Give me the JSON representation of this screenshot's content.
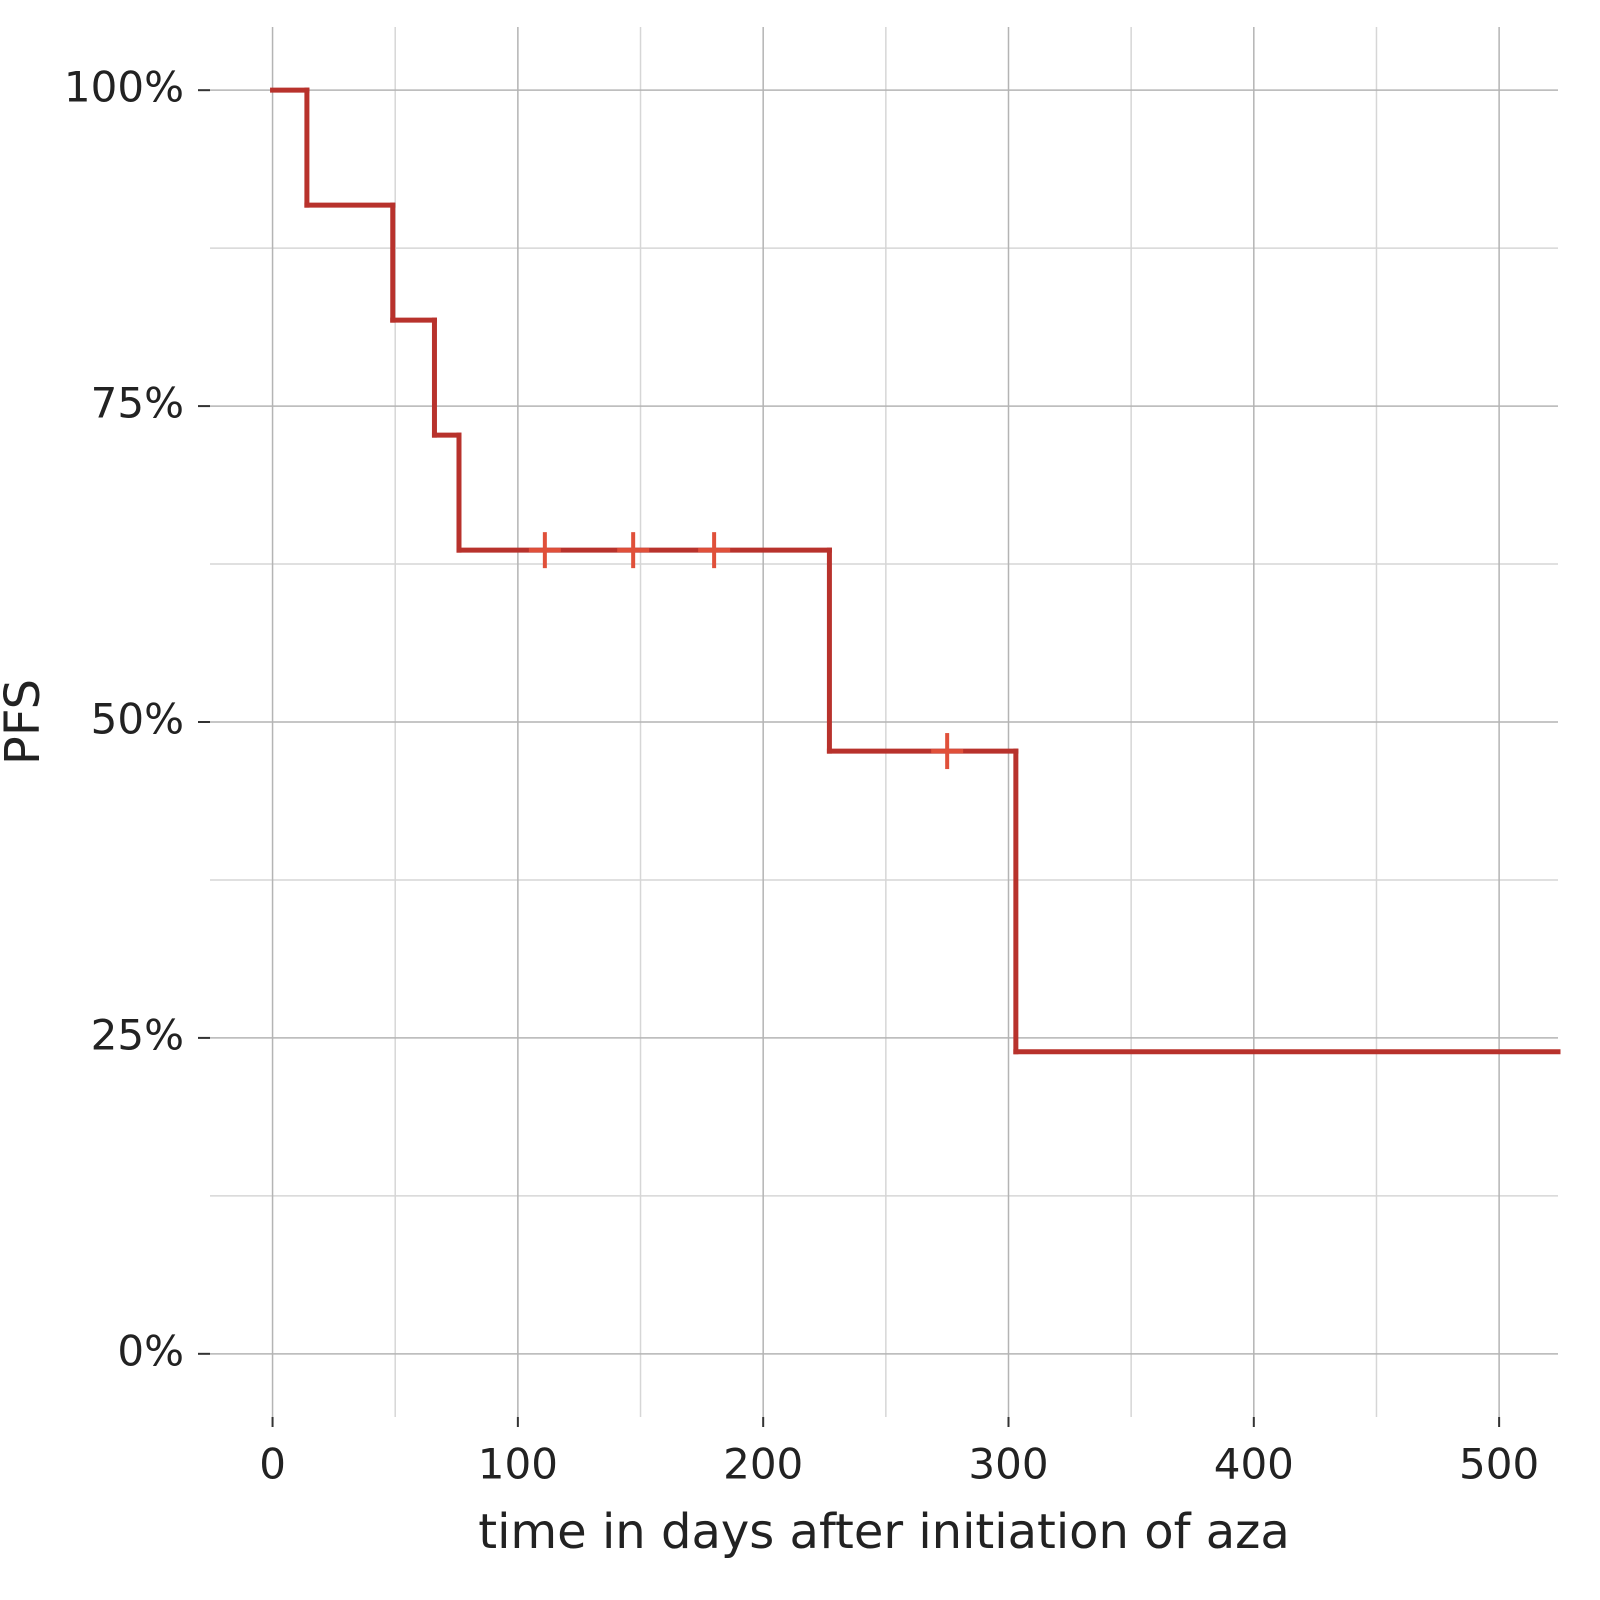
{
  "chart_data": {
    "type": "step",
    "x_label": "time in days after initiation of aza",
    "y_label": "PFS",
    "x": [
      0,
      14,
      49,
      66,
      76,
      227,
      303,
      524
    ],
    "values": [
      100,
      90.9,
      81.8,
      72.7,
      63.6,
      47.7,
      23.9,
      23.9
    ],
    "color": "#b8322c",
    "censored": {
      "x": [
        111,
        147,
        180,
        275
      ],
      "values": [
        63.6,
        63.6,
        63.6,
        47.7
      ],
      "color": "#e0503a"
    },
    "xlim": [
      -25.5,
      524
    ],
    "xticks": [
      0,
      100,
      200,
      300,
      400,
      500
    ],
    "xminor": [
      50,
      150,
      250,
      350,
      450
    ],
    "ylim": [
      -5,
      105
    ],
    "yticks": [
      {
        "value": 0,
        "label": "0%"
      },
      {
        "value": 25,
        "label": "25%"
      },
      {
        "value": 50,
        "label": "50%"
      },
      {
        "value": 75,
        "label": "75%"
      },
      {
        "value": 100,
        "label": "100%"
      }
    ],
    "yminor": [
      12.5,
      37.5,
      62.5,
      87.5
    ],
    "grid": true
  }
}
